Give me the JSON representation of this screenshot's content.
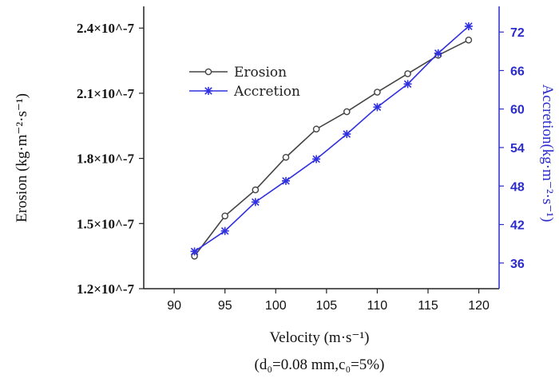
{
  "chart_data": {
    "type": "line",
    "title": "",
    "subtitle": "(d₀=0.08 mm,c₀=5%)",
    "xlabel": "Velocity (m·s⁻¹)",
    "ylabel_left": "Erosion (kg·m⁻²·s⁻¹)",
    "ylabel_right": "Accretion(kg·m⁻²·s⁻¹)",
    "x": [
      92,
      95,
      98,
      101,
      104,
      107,
      110,
      113,
      116,
      119
    ],
    "xlim": [
      87,
      122
    ],
    "xticks": [
      90,
      95,
      100,
      105,
      110,
      115,
      120
    ],
    "ylim_left": [
      1.2e-07,
      2.5e-07
    ],
    "yticks_left": [
      1.2e-07,
      1.5e-07,
      1.8e-07,
      2.1e-07,
      2.4e-07
    ],
    "yticklabels_left": [
      "1.2×10^-7",
      "1.5×10^-7",
      "1.8×10^-7",
      "2.1×10^-7",
      "2.4×10^-7"
    ],
    "ylim_right": [
      32,
      76
    ],
    "yticks_right": [
      36,
      42,
      48,
      54,
      60,
      66,
      72
    ],
    "legend_position": "top-left",
    "series": [
      {
        "name": "Erosion",
        "axis": "left",
        "color": "#444444",
        "marker": "circle",
        "values": [
          1.35e-07,
          1.535e-07,
          1.655e-07,
          1.805e-07,
          1.935e-07,
          2.015e-07,
          2.105e-07,
          2.19e-07,
          2.275e-07,
          2.345e-07
        ]
      },
      {
        "name": "Accretion",
        "axis": "right",
        "color": "#3030e0",
        "marker": "asterisk",
        "values": [
          37.8,
          41.0,
          45.5,
          48.8,
          52.2,
          56.1,
          60.3,
          63.9,
          68.7,
          72.9
        ]
      }
    ]
  }
}
